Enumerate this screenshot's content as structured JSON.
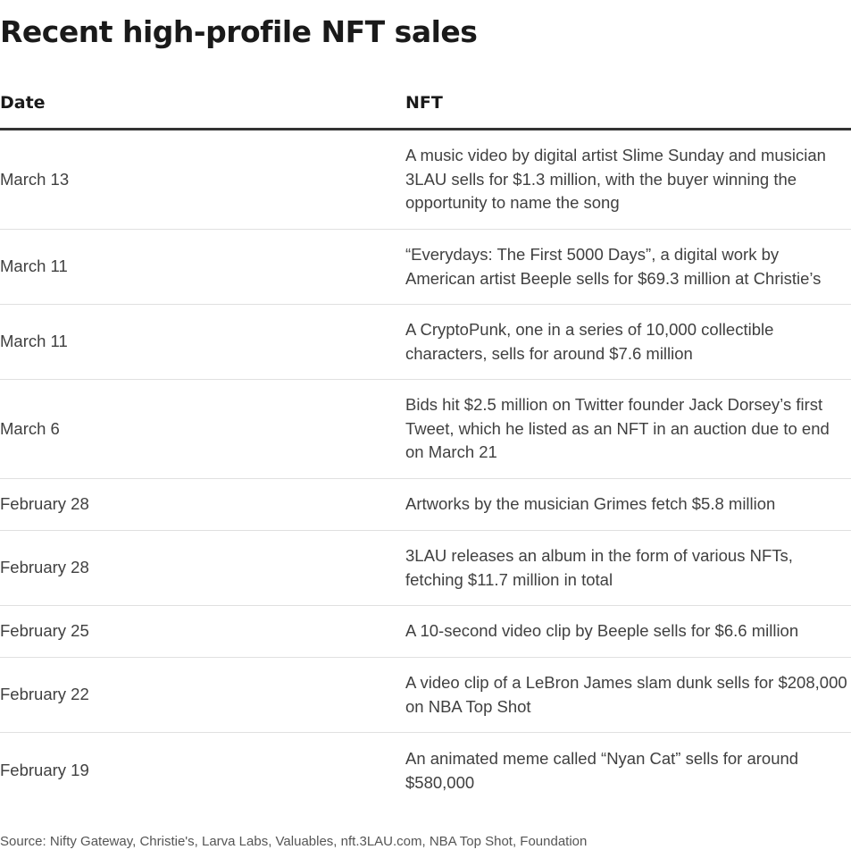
{
  "chart_data": {
    "type": "table",
    "title": "Recent high-profile NFT sales",
    "columns": [
      "Date",
      "NFT"
    ],
    "rows": [
      {
        "date": "March 13",
        "nft": "A music video by digital artist Slime Sunday and musician 3LAU sells for $1.3 million, with the buyer winning the opportunity to name the song"
      },
      {
        "date": "March 11",
        "nft": "“Everydays: The First 5000 Days”, a digital work by American artist Beeple sells for $69.3 million at Christie’s"
      },
      {
        "date": "March 11",
        "nft": "A CryptoPunk, one in a series of 10,000 collectible characters, sells for around $7.6 million"
      },
      {
        "date": "March 6",
        "nft": "Bids hit $2.5 million on Twitter founder Jack Dorsey’s first Tweet, which he listed as an NFT in an auction due to end on March 21"
      },
      {
        "date": "February 28",
        "nft": "Artworks by the musician Grimes fetch $5.8 million"
      },
      {
        "date": "February 28",
        "nft": "3LAU releases an album in the form of various NFTs, fetching $11.7 million in total"
      },
      {
        "date": "February 25",
        "nft": "A 10-second video clip by Beeple sells for $6.6 million"
      },
      {
        "date": "February 22",
        "nft": "A video clip of a LeBron James slam dunk sells for $208,000 on NBA Top Shot"
      },
      {
        "date": "February 19",
        "nft": "An animated meme called “Nyan Cat” sells for around $580,000"
      }
    ],
    "source": "Source: Nifty Gateway, Christie's, Larva Labs, Valuables, nft.3LAU.com, NBA Top Shot, Foundation"
  }
}
